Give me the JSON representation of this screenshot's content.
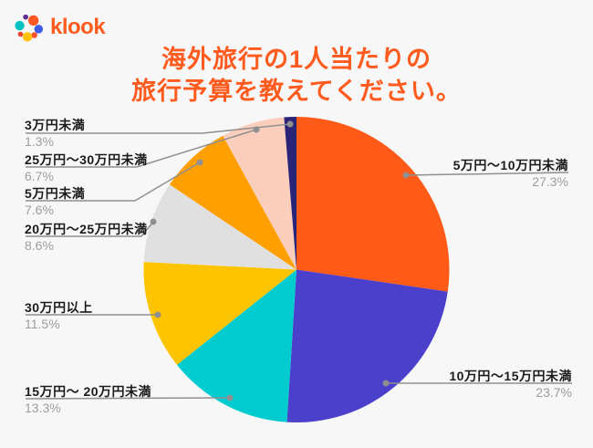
{
  "brand": {
    "logo_text": "klook",
    "brand_color": "#FF5B1E"
  },
  "title": {
    "line1": "海外旅行の1人当たりの",
    "line2": "旅行予算を教えてください。",
    "color": "#FF5B1E"
  },
  "chart_data": {
    "type": "pie",
    "title": "海外旅行の1人当たりの旅行予算を教えてください。",
    "start_angle_deg": -90,
    "direction": "clockwise",
    "legend_position": "callout-labels",
    "slices": [
      {
        "label": "5万円〜10万円未満",
        "value": 27.3,
        "pct": "27.3%",
        "color": "#FF5A17"
      },
      {
        "label": "10万円〜15万円未満",
        "value": 23.7,
        "pct": "23.7%",
        "color": "#4B40CB"
      },
      {
        "label": "15万円〜 20万円未満",
        "value": 13.3,
        "pct": "13.3%",
        "color": "#00CBCE"
      },
      {
        "label": "30万円以上",
        "value": 11.5,
        "pct": "11.5%",
        "color": "#FFC400"
      },
      {
        "label": "20万円〜25万円未満",
        "value": 8.6,
        "pct": "8.6%",
        "color": "#E0E0E0"
      },
      {
        "label": "5万円未満",
        "value": 7.6,
        "pct": "7.6%",
        "color": "#FFA000"
      },
      {
        "label": "25万円〜30万円未満",
        "value": 6.7,
        "pct": "6.7%",
        "color": "#FBCEBB"
      },
      {
        "label": "3万円未満",
        "value": 1.3,
        "pct": "1.3%",
        "color": "#2A2479"
      }
    ],
    "leader_line_color": "#8F8F8F",
    "label_text_color": "#1B1B1B",
    "pct_text_color": "#9D9D9D",
    "background_color": "#F7F7F8"
  }
}
